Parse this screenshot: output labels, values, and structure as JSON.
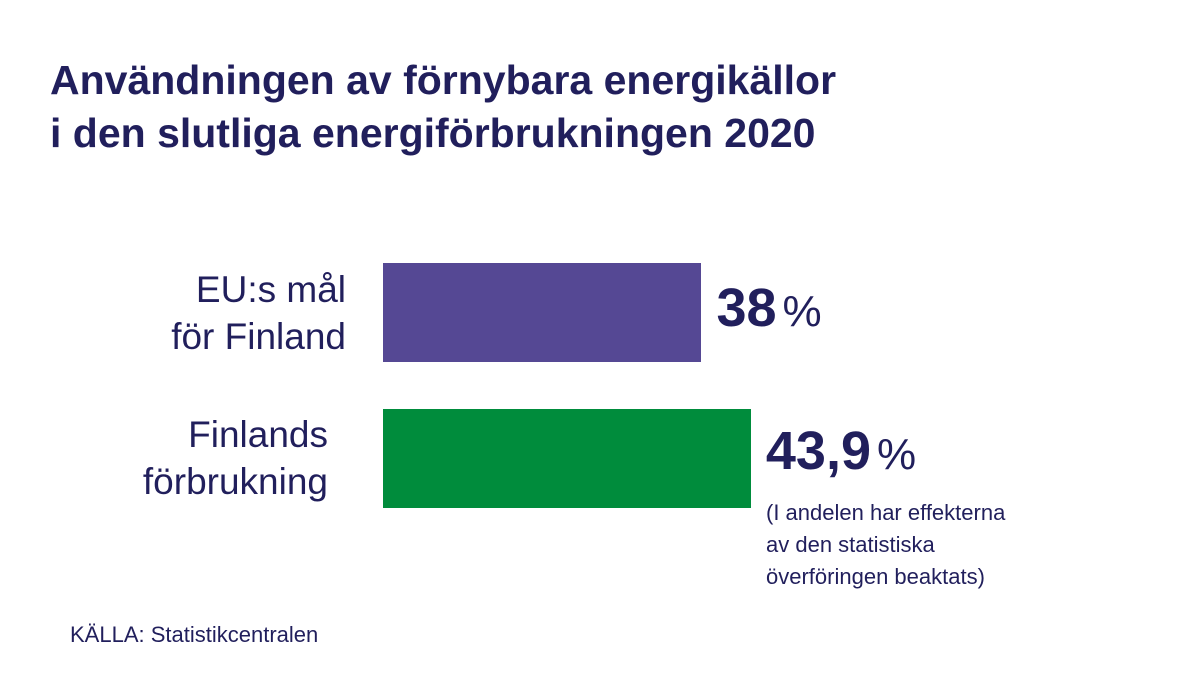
{
  "chart_data": {
    "type": "bar",
    "orientation": "horizontal",
    "title_lines": [
      "Användningen av förnybara energikällor",
      "i den slutliga energiförbrukningen 2020"
    ],
    "categories": [
      {
        "lines": [
          "EU:s mål",
          "för Finland"
        ]
      },
      {
        "lines": [
          "Finlands",
          "förbrukning"
        ]
      }
    ],
    "values": [
      38,
      43.9
    ],
    "value_labels": [
      "38",
      "43,9"
    ],
    "unit": "%",
    "note_lines": [
      "(I andelen har effekterna",
      "av den statistiska",
      "överföringen beaktats)"
    ],
    "colors": [
      "#554894",
      "#008c3c"
    ],
    "text_color": "#211f5c",
    "grid": false,
    "axes_visible": false
  },
  "source": "KÄLLA: Statistikcentralen"
}
